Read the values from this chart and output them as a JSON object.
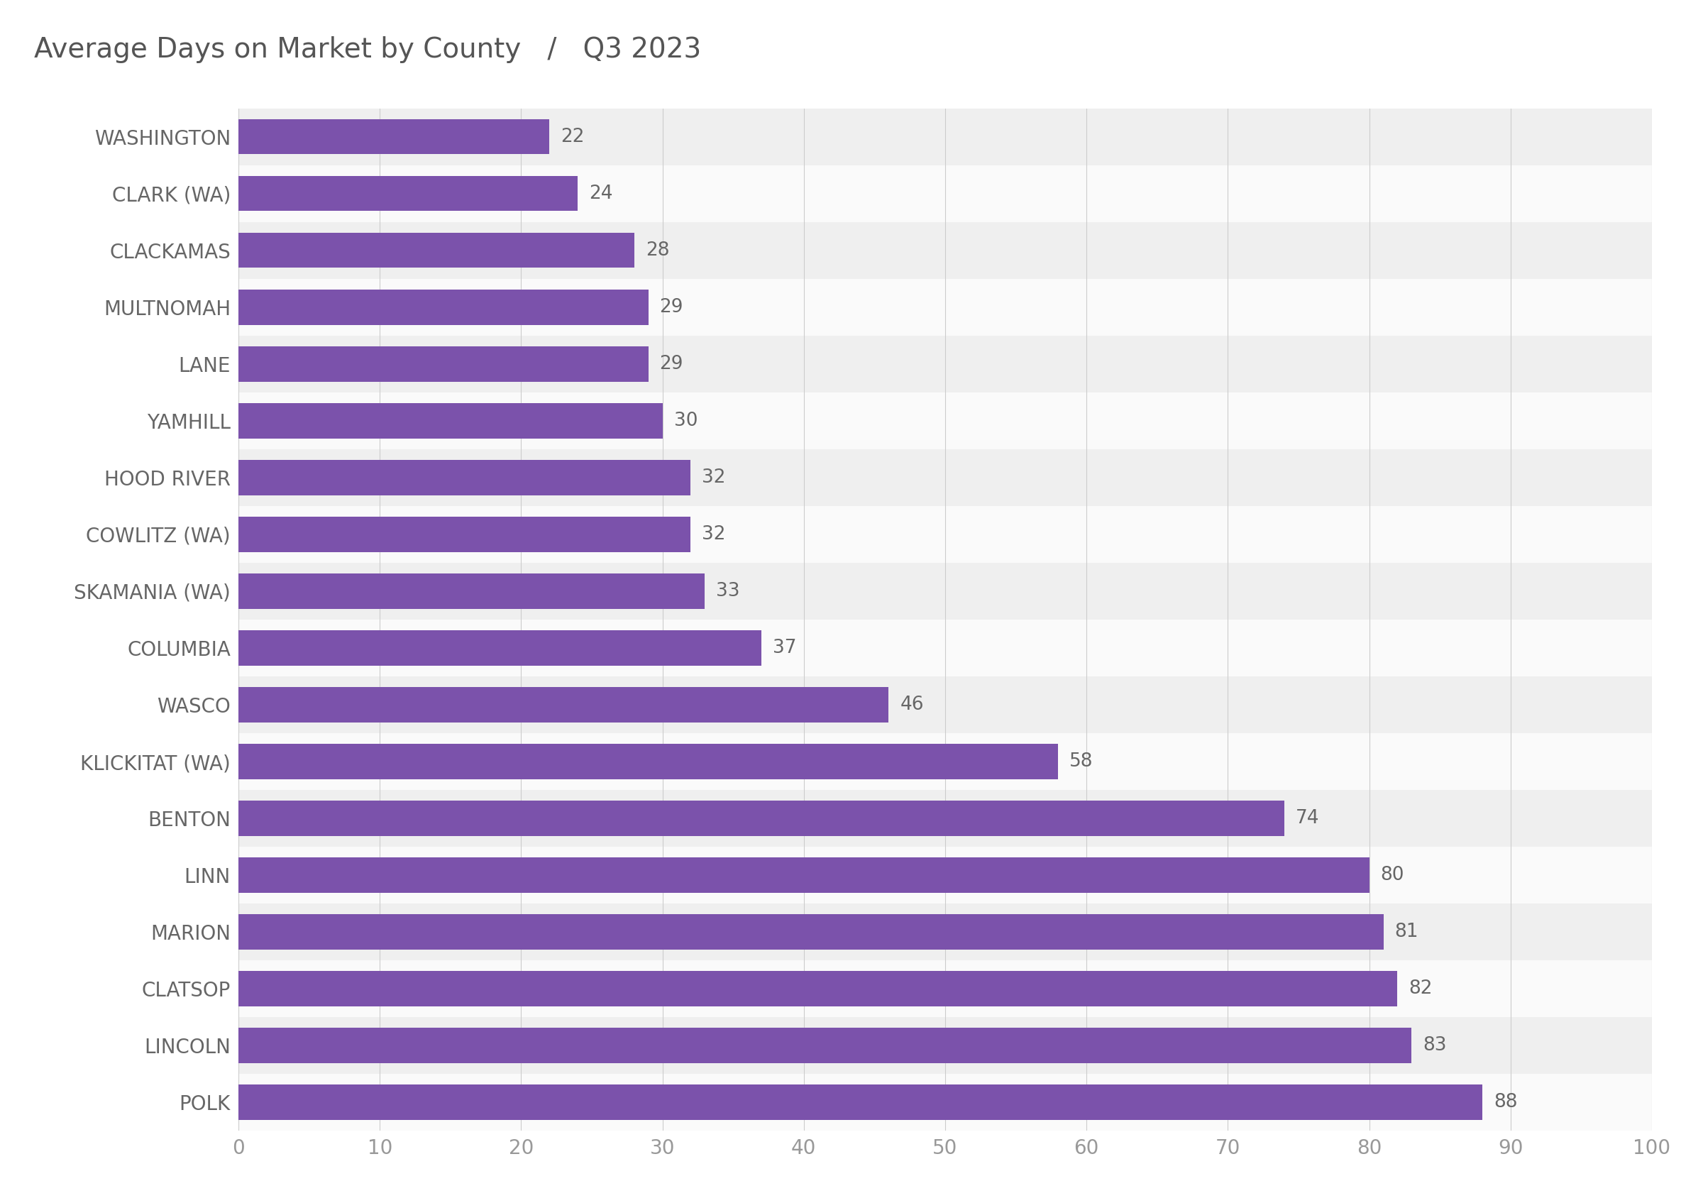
{
  "title": "Average Days on Market by County   /   Q3 2023",
  "categories": [
    "WASHINGTON",
    "CLARK (WA)",
    "CLACKAMAS",
    "MULTNOMAH",
    "LANE",
    "YAMHILL",
    "HOOD RIVER",
    "COWLITZ (WA)",
    "SKAMANIA (WA)",
    "COLUMBIA",
    "WASCO",
    "KLICKITAT (WA)",
    "BENTON",
    "LINN",
    "MARION",
    "CLATSOP",
    "LINCOLN",
    "POLK"
  ],
  "values": [
    22,
    24,
    28,
    29,
    29,
    30,
    32,
    32,
    33,
    37,
    46,
    58,
    74,
    80,
    81,
    82,
    83,
    88
  ],
  "bar_color": "#7B52AB",
  "label_color": "#666666",
  "title_color": "#555555",
  "row_color_even": "#efefef",
  "row_color_odd": "#fafafa",
  "grid_color": "#cccccc",
  "tick_label_color": "#999999",
  "xlim": [
    0,
    100
  ],
  "xticks": [
    0,
    10,
    20,
    30,
    40,
    50,
    60,
    70,
    80,
    90,
    100
  ],
  "title_fontsize": 28,
  "label_fontsize": 20,
  "tick_fontsize": 20,
  "value_fontsize": 19
}
